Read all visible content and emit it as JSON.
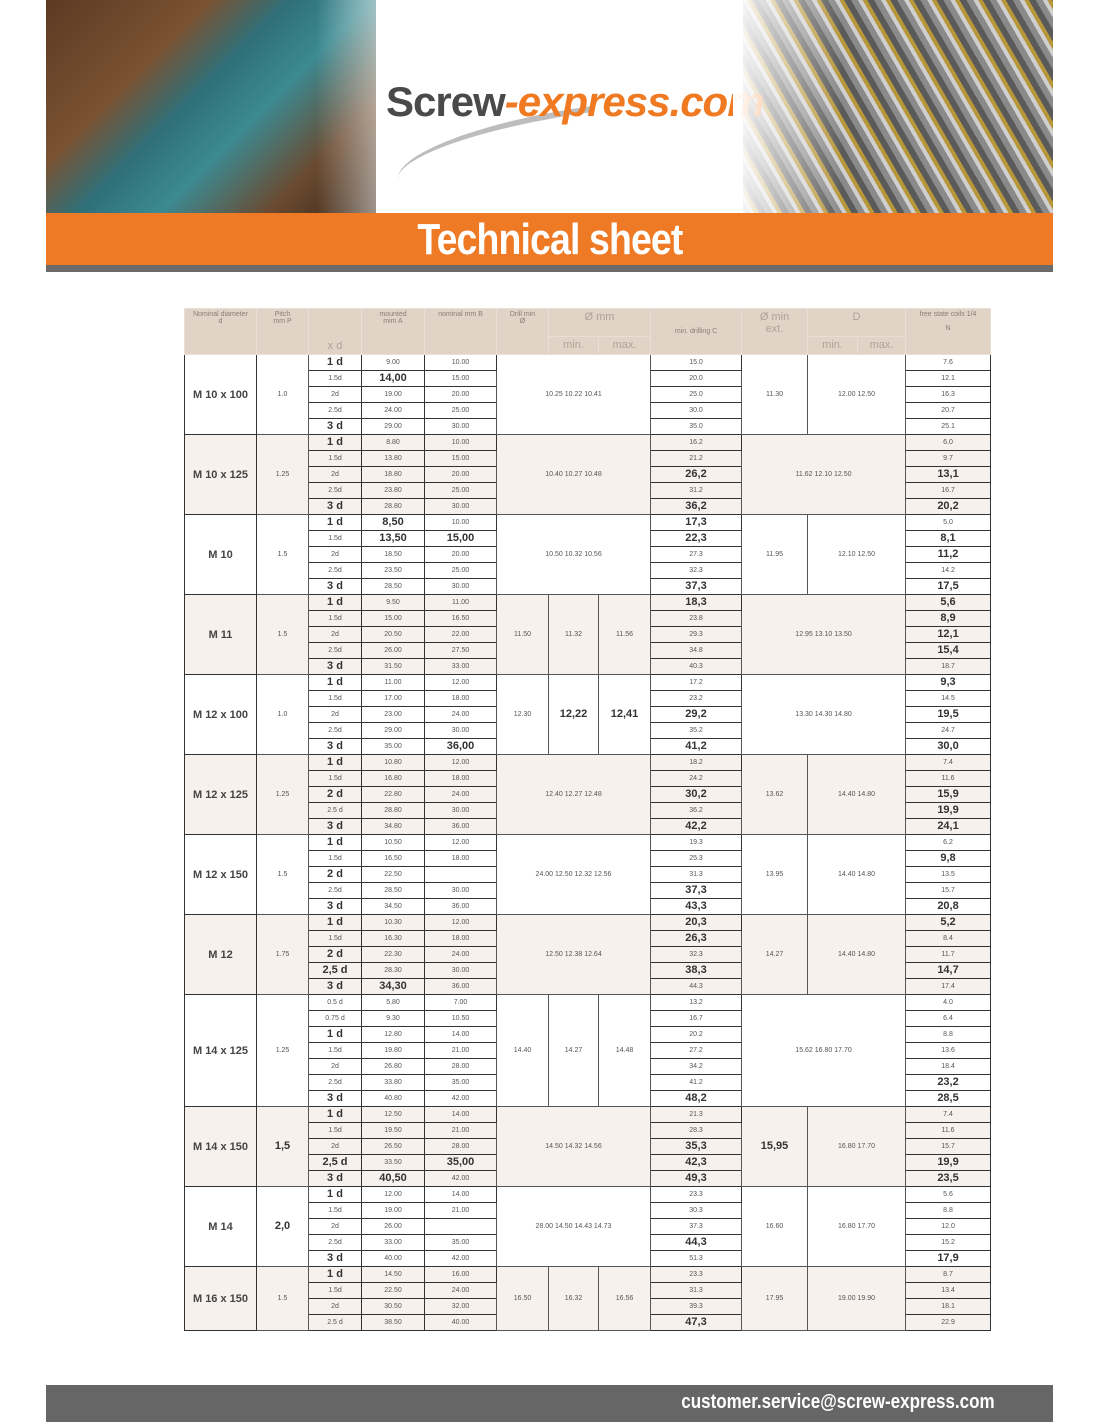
{
  "header": {
    "logo_part1": "Screw",
    "logo_part2": "-express.com",
    "title": "Technical sheet"
  },
  "colors": {
    "accent": "#ef7a26",
    "header_bg": "#e2d3c7",
    "footer_bg": "#666666",
    "alt_row": "#f7f1ee"
  },
  "table": {
    "headers": {
      "nominal": [
        "Nominal diameter",
        "d"
      ],
      "pitch": [
        "Pitch",
        "mm P"
      ],
      "xd": "x d",
      "a": [
        "mounted",
        "mim A"
      ],
      "b": "nominal mm B",
      "drill": [
        "Drill min",
        "Ø"
      ],
      "perc": "Ø mm",
      "perc_min": "min.",
      "perc_max": "max.",
      "c": "min. drilling C",
      "dmin": [
        "Ø min",
        "ext."
      ],
      "d": "D",
      "d_min": "min.",
      "d_max": "max.",
      "n": [
        "free state coils 1/4",
        "N"
      ]
    },
    "groups": [
      {
        "nominal": "M 10 x 100",
        "pitch": "1.0",
        "perc": [
          "10.25 10.22 10.41"
        ],
        "dims": [
          "11.30",
          "12.00 12.50"
        ],
        "rows": [
          [
            "1 d",
            "9.00",
            "10.00",
            "15.0",
            "7.6"
          ],
          [
            "1.5d",
            "14,00",
            "15.00",
            "20.0",
            "12.1"
          ],
          [
            "2d",
            "19.00",
            "20.00",
            "25.0",
            "16.3"
          ],
          [
            "2.5d",
            "24.00",
            "25.00",
            "30.0",
            "20.7"
          ],
          [
            "3 d",
            "29.00",
            "30.00",
            "35.0",
            "25.1"
          ]
        ]
      },
      {
        "nominal": "M 10 x 125",
        "pitch": "1.25",
        "perc": [
          "10.40 10.27 10.48"
        ],
        "dims": [
          "11.62 12.10 12.50"
        ],
        "rows": [
          [
            "1 d",
            "8.80",
            "10.00",
            "16.2",
            "6.0"
          ],
          [
            "1.5d",
            "13.80",
            "15.00",
            "21.2",
            "9.7"
          ],
          [
            "2d",
            "18.80",
            "20.00",
            "26,2",
            "13,1"
          ],
          [
            "2.5d",
            "23.80",
            "25.00",
            "31.2",
            "16.7"
          ],
          [
            "3 d",
            "28.80",
            "30.00",
            "36,2",
            "20,2"
          ]
        ]
      },
      {
        "nominal": "M 10",
        "pitch": "1.5",
        "perc": [
          "10.50 10.32 10.56"
        ],
        "dims": [
          "11.95",
          "12.10 12.50"
        ],
        "rows": [
          [
            "1 d",
            "8,50",
            "10.00",
            "17,3",
            "5.0"
          ],
          [
            "1.5d",
            "13,50",
            "15,00",
            "22,3",
            "8,1"
          ],
          [
            "2d",
            "18.50",
            "20.00",
            "27.3",
            "11,2"
          ],
          [
            "2.5d",
            "23.50",
            "25.00",
            "32.3",
            "14.2"
          ],
          [
            "3 d",
            "28.50",
            "30.00",
            "37,3",
            "17,5"
          ]
        ]
      },
      {
        "nominal": "M 11",
        "pitch": "1.5",
        "perc": [
          "11.50",
          "11.32",
          "11.56"
        ],
        "dims": [
          "12.95 13.10 13.50"
        ],
        "rows": [
          [
            "1 d",
            "9.50",
            "11.00",
            "18,3",
            "5,6"
          ],
          [
            "1.5d",
            "15.00",
            "16.50",
            "23.8",
            "8,9"
          ],
          [
            "2d",
            "20.50",
            "22.00",
            "29.3",
            "12,1"
          ],
          [
            "2.5d",
            "26.00",
            "27.50",
            "34.8",
            "15,4"
          ],
          [
            "3 d",
            "31.50",
            "33.00",
            "40.3",
            "18.7"
          ]
        ]
      },
      {
        "nominal": "M 12 x 100",
        "pitch": "1.0",
        "perc": [
          "12.30",
          "12,22",
          "12,41"
        ],
        "dims": [
          "13.30 14.30 14.80"
        ],
        "rows": [
          [
            "1 d",
            "11.00",
            "12.00",
            "17.2",
            "9,3"
          ],
          [
            "1.5d",
            "17.00",
            "18.00",
            "23.2",
            "14.5"
          ],
          [
            "2d",
            "23.00",
            "24.00",
            "29,2",
            "19,5"
          ],
          [
            "2.5d",
            "29.00",
            "30.00",
            "35.2",
            "24.7"
          ],
          [
            "3 d",
            "35.00",
            "36,00",
            "41,2",
            "30,0"
          ]
        ]
      },
      {
        "nominal": "M 12 x 125",
        "pitch": "1.25",
        "perc": [
          "12.40 12.27 12.48"
        ],
        "dims": [
          "13.62",
          "14.40 14.80"
        ],
        "rows": [
          [
            "1 d",
            "10.80",
            "12.00",
            "18.2",
            "7.4"
          ],
          [
            "1.5d",
            "16.80",
            "18.00",
            "24.2",
            "11.6"
          ],
          [
            "2 d",
            "22.80",
            "24.00",
            "30,2",
            "15,9"
          ],
          [
            "2.5 d",
            "28.80",
            "30.00",
            "36.2",
            "19,9"
          ],
          [
            "3 d",
            "34.80",
            "36.00",
            "42,2",
            "24,1"
          ]
        ]
      },
      {
        "nominal": "M 12 x 150",
        "pitch": "1.5",
        "perc": [
          "24.00 12.50 12.32 12.56"
        ],
        "dims": [
          "13.95",
          "14.40 14.80"
        ],
        "rows": [
          [
            "1 d",
            "10.50",
            "12.00",
            "19.3",
            "6.2"
          ],
          [
            "1.5d",
            "16.50",
            "18.00",
            "25.3",
            "9,8"
          ],
          [
            "2 d",
            "22.50",
            "",
            "31.3",
            "13.5"
          ],
          [
            "2.5d",
            "28.50",
            "30.00",
            "37,3",
            "15.7"
          ],
          [
            "3 d",
            "34.50",
            "36.00",
            "43,3",
            "20,8"
          ]
        ]
      },
      {
        "nominal": "M 12",
        "pitch": "1.75",
        "perc": [
          "12.50 12.38 12.64"
        ],
        "dims": [
          "14.27",
          "14.40 14.80"
        ],
        "rows": [
          [
            "1 d",
            "10.30",
            "12.00",
            "20,3",
            "5,2"
          ],
          [
            "1.5d",
            "16.30",
            "18.00",
            "26,3",
            "8.4"
          ],
          [
            "2 d",
            "22.30",
            "24.00",
            "32.3",
            "11.7"
          ],
          [
            "2,5 d",
            "28.30",
            "30.00",
            "38,3",
            "14,7"
          ],
          [
            "3 d",
            "34,30",
            "36.00",
            "44.3",
            "17.4"
          ]
        ]
      },
      {
        "nominal": "M 14 x 125",
        "pitch": "1.25",
        "perc": [
          "14.40",
          "14.27",
          "14.48"
        ],
        "dims": [
          "15.62 16.80 17.70"
        ],
        "rows": [
          [
            "0.5 d",
            "5.80",
            "7.00",
            "13.2",
            "4.0"
          ],
          [
            "0.75 d",
            "9.30",
            "10.50",
            "16.7",
            "6.4"
          ],
          [
            "1 d",
            "12.80",
            "14.00",
            "20.2",
            "8.8"
          ],
          [
            "1.5d",
            "19.80",
            "21.00",
            "27.2",
            "13.6"
          ],
          [
            "2d",
            "26.80",
            "28.00",
            "34.2",
            "18.4"
          ],
          [
            "2.5d",
            "33.80",
            "35.00",
            "41.2",
            "23,2"
          ],
          [
            "3 d",
            "40.80",
            "42.00",
            "48,2",
            "28,5"
          ]
        ]
      },
      {
        "nominal": "M 14 x 150",
        "pitch": "1,5",
        "perc": [
          "14.50 14.32 14.56"
        ],
        "dims": [
          "15,95",
          "16.80 17.70"
        ],
        "rows": [
          [
            "1 d",
            "12.50",
            "14.00",
            "21.3",
            "7.4"
          ],
          [
            "1.5d",
            "19.50",
            "21.00",
            "28.3",
            "11.6"
          ],
          [
            "2d",
            "26.50",
            "28.00",
            "35,3",
            "15.7"
          ],
          [
            "2,5 d",
            "33.50",
            "35,00",
            "42,3",
            "19,9"
          ],
          [
            "3 d",
            "40,50",
            "42.00",
            "49,3",
            "23,5"
          ]
        ]
      },
      {
        "nominal": "M 14",
        "pitch": "2,0",
        "perc": [
          "28.00 14.50 14.43 14.73"
        ],
        "dims": [
          "16.60",
          "16.80 17.70"
        ],
        "rows": [
          [
            "1 d",
            "12.00",
            "14.00",
            "23.3",
            "5.6"
          ],
          [
            "1.5d",
            "19.00",
            "21.00",
            "30.3",
            "8.8"
          ],
          [
            "2d",
            "26.00",
            "",
            "37.3",
            "12.0"
          ],
          [
            "2.5d",
            "33.00",
            "35.00",
            "44,3",
            "15.2"
          ],
          [
            "3 d",
            "40.00",
            "42.00",
            "51.3",
            "17,9"
          ]
        ]
      },
      {
        "nominal": "M 16 x 150",
        "pitch": "1.5",
        "perc": [
          "16.50",
          "16.32",
          "16.56"
        ],
        "dims": [
          "17.95",
          "19.00 19.90"
        ],
        "rows": [
          [
            "1 d",
            "14.50",
            "16.00",
            "23.3",
            "8.7"
          ],
          [
            "1.5d",
            "22.50",
            "24.00",
            "31.3",
            "13.4"
          ],
          [
            "2d",
            "30.50",
            "32.00",
            "39.3",
            "18.1"
          ],
          [
            "2.5 d",
            "38.50",
            "40.00",
            "47,3",
            "22.9"
          ]
        ]
      }
    ]
  },
  "footer": {
    "email": "customer.service@screw-express.com"
  }
}
